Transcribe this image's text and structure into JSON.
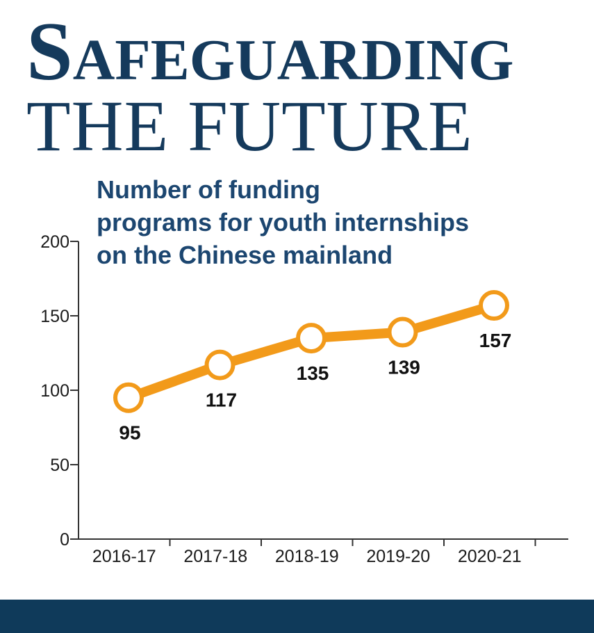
{
  "headline": {
    "line1_initial": "S",
    "line1_rest": "afeguarding",
    "line2": "THE FUTURE"
  },
  "colors": {
    "headline": "#153a5c",
    "subtitle": "#1c4670",
    "series": "#f29a1a",
    "axis": "#333333",
    "footer": "#0f3a5a"
  },
  "chart_data": {
    "type": "line",
    "title": "Number of funding\nprograms for youth internships\non the Chinese mainland",
    "xlabel": "",
    "ylabel": "",
    "categories": [
      "2016-17",
      "2017-18",
      "2018-19",
      "2019-20",
      "2020-21"
    ],
    "series": [
      {
        "values": [
          95,
          117,
          135,
          139,
          157
        ]
      }
    ],
    "y_ticks": [
      0,
      50,
      100,
      150,
      200
    ],
    "ylim": [
      0,
      200
    ],
    "grid": false,
    "legend": "none"
  }
}
